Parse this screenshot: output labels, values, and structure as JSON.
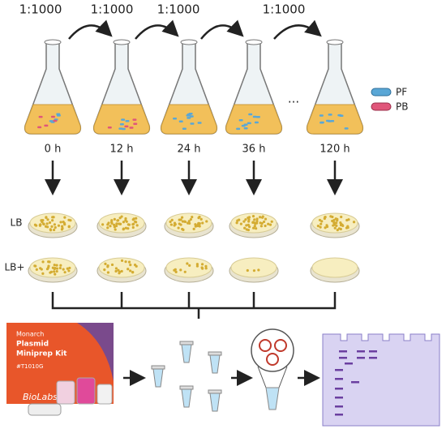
{
  "dilutions": [
    "1:1000",
    "1:1000",
    "1:1000",
    "1:1000"
  ],
  "timepoints": [
    "0 h",
    "12 h",
    "24 h",
    "36 h",
    "120 h"
  ],
  "ellipsis": "...",
  "legend": [
    {
      "label": "PF"
    },
    {
      "label": "PB"
    }
  ],
  "media": [
    "LB",
    "LB+"
  ],
  "kit": {
    "brand": "Monarch",
    "name_line1": "Plasmid",
    "name_line2": "Miniprep Kit",
    "catalog": "#T1010G",
    "maker": "BioLabs"
  }
}
